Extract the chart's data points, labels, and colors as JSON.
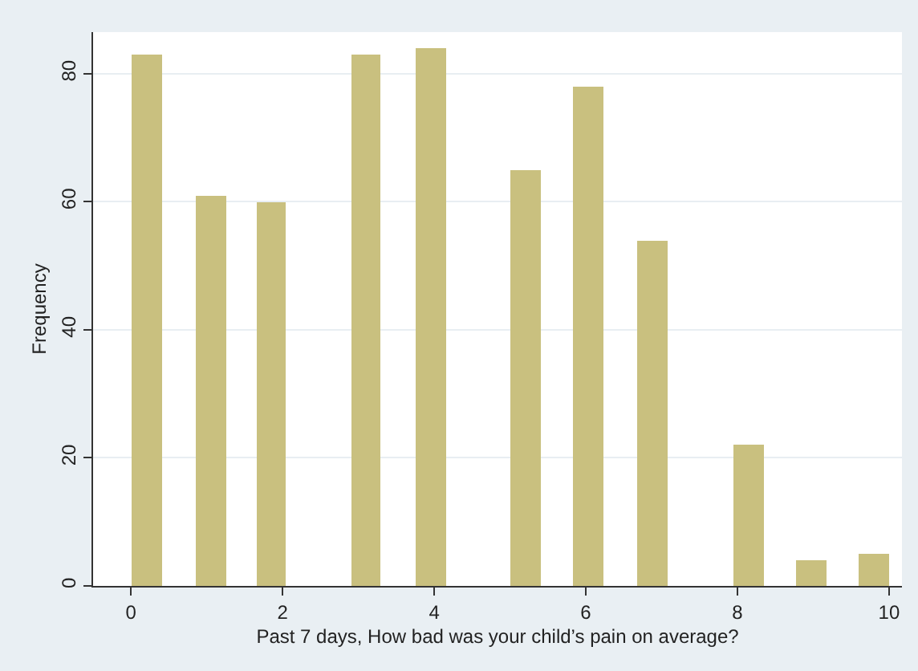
{
  "chart_data": {
    "type": "bar",
    "xlabel": "Past 7 days, How bad was your child’s pain on average?",
    "ylabel": "Frequency",
    "x": [
      0.2,
      1.05,
      1.85,
      3.1,
      3.96,
      5.2,
      6.03,
      6.87,
      8.15,
      8.97,
      9.8
    ],
    "values": [
      83,
      61,
      60,
      83,
      84,
      65,
      78,
      54,
      22,
      4,
      5
    ],
    "color": "#c9c07f",
    "xlim": [
      -0.5,
      10.17
    ],
    "xticks": [
      0,
      2,
      4,
      6,
      8,
      10
    ],
    "ylim": [
      0,
      86.5
    ],
    "yticks": [
      0,
      20,
      40,
      60,
      80
    ],
    "grid": "y"
  }
}
